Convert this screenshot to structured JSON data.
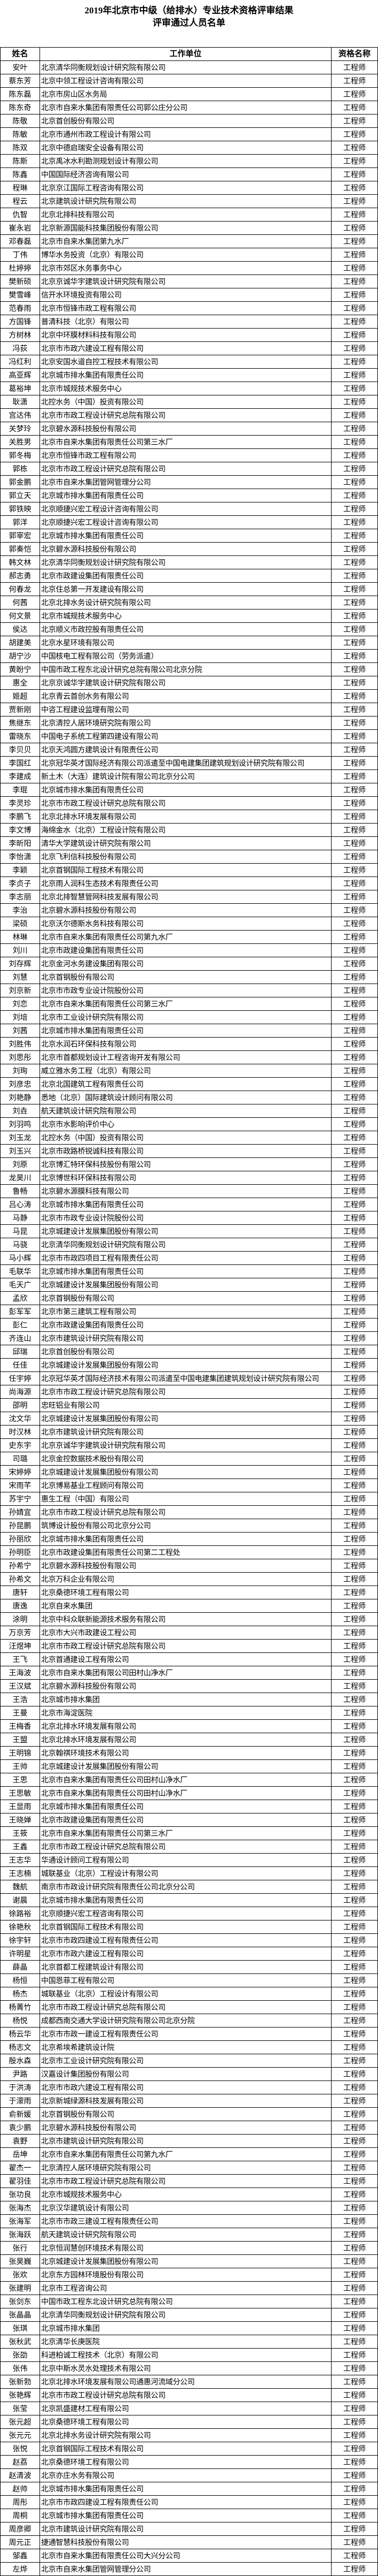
{
  "title": {
    "line1": "2019年北京市中级（给排水）专业技术资格评审结果",
    "line2": "评审通过人员名单"
  },
  "table": {
    "headers": [
      "姓名",
      "工作单位",
      "资格名称"
    ],
    "rows": [
      [
        "安叶",
        "北京清华同衡规划设计研究院有限公司",
        "工程师"
      ],
      [
        "蔡东芳",
        "北京中领工程设计咨询有限公司",
        "工程师"
      ],
      [
        "陈东磊",
        "北京市房山区水务局",
        "工程师"
      ],
      [
        "陈东奇",
        "北京市自来水集团有限责任公司郭公庄分公司",
        "工程师"
      ],
      [
        "陈敬",
        "北京首创股份有限公司",
        "工程师"
      ],
      [
        "陈敏",
        "北京市通州市政工程设计有限公司",
        "工程师"
      ],
      [
        "陈双",
        "北京中德启瑞安全设备有限公司",
        "工程师"
      ],
      [
        "陈斯",
        "北京禹冰水利勘测规划设计有限公司",
        "工程师"
      ],
      [
        "陈鑫",
        "中国国际经济咨询有限公司",
        "工程师"
      ],
      [
        "程琳",
        "北京京江国际工程咨询有限公司",
        "工程师"
      ],
      [
        "程云",
        "北京建筑设计研究院有限公司",
        "工程师"
      ],
      [
        "仇智",
        "北京北排科技有限公司",
        "工程师"
      ],
      [
        "崔永岩",
        "北京新源国能科技集团股份有限公司",
        "工程师"
      ],
      [
        "邓春磊",
        "北京市自来水集团第九水厂",
        "工程师"
      ],
      [
        "丁伟",
        "博华水务投资（北京）有限公司",
        "工程师"
      ],
      [
        "杜婷婷",
        "北京市郊区水务事务中心",
        "工程师"
      ],
      [
        "樊新硕",
        "北京京诚华宇建筑设计研究院有限公司",
        "工程师"
      ],
      [
        "樊雪峰",
        "信开水环境投资有限公司",
        "工程师"
      ],
      [
        "范春雨",
        "北京市恒锋市政工程有限公司",
        "工程师"
      ],
      [
        "方国锋",
        "普清科技（北京）有限公司",
        "工程师"
      ],
      [
        "方树林",
        "北京中环膜材料科技有限公司",
        "工程师"
      ],
      [
        "冯荻",
        "北京市市政六建设工程有限公司",
        "工程师"
      ],
      [
        "冯红利",
        "北京安国水道自控工程技术有限公司",
        "工程师"
      ],
      [
        "高亚辉",
        "北京城市排水集团有限责任公司",
        "工程师"
      ],
      [
        "葛裕坤",
        "北京市城规技术服务中心",
        "工程师"
      ],
      [
        "耿潇",
        "北控水务（中国）投资有限公司",
        "工程师"
      ],
      [
        "宫达伟",
        "北京市市政工程设计研究总院有限公司",
        "工程师"
      ],
      [
        "关梦玲",
        "北京碧水源科技股份有限公司",
        "工程师"
      ],
      [
        "关胜男",
        "北京市自来水集团有限责任公司第三水厂",
        "工程师"
      ],
      [
        "郭冬梅",
        "北京市恒锋市政工程有限公司",
        "工程师"
      ],
      [
        "郭栋",
        "北京市市政工程设计研究总院有限公司",
        "工程师"
      ],
      [
        "郭金鹏",
        "北京市自来水集团管网管理分公司",
        "工程师"
      ],
      [
        "郭立天",
        "北京城市排水集团有限责任公司",
        "工程师"
      ],
      [
        "郭铁映",
        "北京顺捷兴宏工程设计咨询有限公司",
        "工程师"
      ],
      [
        "郭洋",
        "北京顺捷兴宏工程设计咨询有限公司",
        "工程师"
      ],
      [
        "郭宰宏",
        "北京城市排水集团有限责任公司",
        "工程师"
      ],
      [
        "郭奏恺",
        "北京碧水源科技股份有限公司",
        "工程师"
      ],
      [
        "韩文林",
        "北京清华同衡规划设计研究院有限公司",
        "工程师"
      ],
      [
        "郝志勇",
        "北京市政建设集团有限责任公司",
        "工程师"
      ],
      [
        "何春龙",
        "北京住总第一开发建设有限公司",
        "工程师"
      ],
      [
        "何茜",
        "北京北排水务设计研究院有限公司",
        "工程师"
      ],
      [
        "何文景",
        "北京市城规技术服务中心",
        "工程师"
      ],
      [
        "侯达",
        "北京顺义市政控股有限责任公司",
        "工程师"
      ],
      [
        "胡建美",
        "北京水星环境有限公司",
        "工程师"
      ],
      [
        "胡宁沙",
        "中国核电工程有限公司（劳务派遣）",
        "工程师"
      ],
      [
        "黄盼宁",
        "中国市政工程东北设计研究总院有限公司北京分院",
        "工程师"
      ],
      [
        "惠全",
        "北京京诚华宇建筑设计研究院有限公司",
        "工程师"
      ],
      [
        "姬超",
        "北京青云首创水务有限公司",
        "工程师"
      ],
      [
        "贾新刚",
        "中咨工程建设监理有限公司",
        "工程师"
      ],
      [
        "焦继东",
        "北京清控人居环境研究院有限公司",
        "工程师"
      ],
      [
        "雷晓东",
        "中国电子系统工程第四建设有限公司",
        "工程师"
      ],
      [
        "李贝贝",
        "北京天鸿圆方建筑设计有限责任公司",
        "工程师"
      ],
      [
        "李国红",
        "北京冠华英才国际经济有限公司派遣至中国电建集团建筑规划设计研究院有限公司",
        "工程师"
      ],
      [
        "李建成",
        "新土木（大连）建筑设计院有限公司北京分公司",
        "工程师"
      ],
      [
        "李琨",
        "北京城市排水集团有限责任公司",
        "工程师"
      ],
      [
        "李灵珍",
        "北京市市政工程设计研究总院有限公司",
        "工程师"
      ],
      [
        "李鹏飞",
        "北京北排水环境发展有限公司",
        "工程师"
      ],
      [
        "李文博",
        "海绵金水（北京）工程设计院有限公司",
        "工程师"
      ],
      [
        "李昕阳",
        "清华大学建筑设计研究院有限公司",
        "工程师"
      ],
      [
        "李怡潇",
        "北京飞利信科技股份有限公司",
        "工程师"
      ],
      [
        "李颖",
        "北京首钢国际工程技术有限公司",
        "工程师"
      ],
      [
        "李贞子",
        "北京雨人润科生态技术有限责任公司",
        "工程师"
      ],
      [
        "李志丽",
        "北京北排智慧管网科技发展有限公司",
        "工程师"
      ],
      [
        "李治",
        "北京碧水源科技股份有限公司",
        "工程师"
      ],
      [
        "梁硕",
        "北京沃尔德斯水务科技有限公司",
        "工程师"
      ],
      [
        "林琳",
        "北京市自来水集团有限责任公司第九水厂",
        "工程师"
      ],
      [
        "刘川",
        "北京市政建设集团有限责任公司",
        "工程师"
      ],
      [
        "刘存辉",
        "北京金河水务建设集团有限公司",
        "工程师"
      ],
      [
        "刘慧",
        "北京首钢股份有限公司",
        "工程师"
      ],
      [
        "刘京新",
        "北京市市政专业设计院股份公司",
        "工程师"
      ],
      [
        "刘恋",
        "北京市自来水集团有限责任公司第三水厂",
        "工程师"
      ],
      [
        "刘培",
        "北京市工业设计研究院有限公司",
        "工程师"
      ],
      [
        "刘茜",
        "北京城市排水集团有限责任公司",
        "工程师"
      ],
      [
        "刘胜伟",
        "北京水润石环保科技有限公司",
        "工程师"
      ],
      [
        "刘思彤",
        "北京市首都规划设计工程咨询开发有限公司",
        "工程师"
      ],
      [
        "刘珣",
        "威立雅水务工程（北京）有限公司",
        "工程师"
      ],
      [
        "刘彦忠",
        "北京北国建筑工程有限责任公司",
        "工程师"
      ],
      [
        "刘艳静",
        "悉地（北京）国际建筑设计顾问有限公司",
        "工程师"
      ],
      [
        "刘垚",
        "航天建筑设计研究院有限公司",
        "工程师"
      ],
      [
        "刘羽鸣",
        "北京市水影响评价中心",
        "工程师"
      ],
      [
        "刘玉龙",
        "北控水务（中国）投资有限公司",
        "工程师"
      ],
      [
        "刘玉兴",
        "北京市政路桥锐诚科技有限公司",
        "工程师"
      ],
      [
        "刘原",
        "北京博汇特环保科技股份有限公司",
        "工程师"
      ],
      [
        "龙昊川",
        "北京博世科环保科技有限公司",
        "工程师"
      ],
      [
        "鲁畅",
        "北京碧水源膜科技有限公司",
        "工程师"
      ],
      [
        "吕心涛",
        "北京城市排水集团有限责任公司",
        "工程师"
      ],
      [
        "马静",
        "北京市市政专业设计院股份公司",
        "工程师"
      ],
      [
        "马昆",
        "北京城建设计发展集团股份有限公司",
        "工程师"
      ],
      [
        "马骁",
        "北京清华同衡规划设计研究院有限公司",
        "工程师"
      ],
      [
        "马小辉",
        "北京市市政四项目工程有限责任公司",
        "工程师"
      ],
      [
        "毛联华",
        "北京城市排水集团有限责任公司",
        "工程师"
      ],
      [
        "毛天广",
        "北京城建设计发展集团股份有限公司",
        "工程师"
      ],
      [
        "孟欣",
        "北京首钢股份有限公司",
        "工程师"
      ],
      [
        "彭军军",
        "北京市第三建筑工程有限公司",
        "工程师"
      ],
      [
        "彭仁",
        "北京市政建设集团有限责任公司",
        "工程师"
      ],
      [
        "齐连山",
        "北京市建筑设计研究院有限公司",
        "工程师"
      ],
      [
        "邱瑞",
        "北京首创股份有限公司",
        "工程师"
      ],
      [
        "任佳",
        "北京城建设计发展集团股份有限公司",
        "工程师"
      ],
      [
        "任宇婷",
        "北京冠华英才国际经济技术有限公司派遣至中国电建集团建筑规划设计研究院有限公司",
        "工程师"
      ],
      [
        "尚海源",
        "北京市市政工程设计研究总院有限公司",
        "工程师"
      ],
      [
        "邵明",
        "忠旺铝业有限公司",
        "工程师"
      ],
      [
        "沈文华",
        "北京城建设计发展集团股份有限公司",
        "工程师"
      ],
      [
        "时汉林",
        "北京市建筑设计研究院有限公司",
        "工程师"
      ],
      [
        "史东宇",
        "北京京诚华宇建筑设计研究院有限公司",
        "工程师"
      ],
      [
        "司璐",
        "北京金控数据技术股份有限公司",
        "工程师"
      ],
      [
        "宋婷婷",
        "北京城建设计发展集团股份有限公司",
        "工程师"
      ],
      [
        "宋雨芊",
        "北京博易基业工程顾问有限公司",
        "工程师"
      ],
      [
        "苏宇宁",
        "惠生工程（中国）有限公司",
        "工程师"
      ],
      [
        "孙婧宜",
        "北京市市政工程设计研究总院有限公司",
        "工程师"
      ],
      [
        "孙昆鹏",
        "筑博设计股份有限公司北京分公司",
        "工程师"
      ],
      [
        "孙丽欣",
        "北京城市排水集团有限责任公司",
        "工程师"
      ],
      [
        "孙明臣",
        "北京市政建设集团有限责任公司第二工程处",
        "工程师"
      ],
      [
        "孙希宁",
        "北京碧水源科技股份有限公司",
        "工程师"
      ],
      [
        "孙希文",
        "北京万科企业有限公司",
        "工程师"
      ],
      [
        "唐轩",
        "北京桑德环境工程有限公司",
        "工程师"
      ],
      [
        "唐逸",
        "北京自来水集团",
        "工程师"
      ],
      [
        "涂明",
        "北京中科众联新能源技术服务有限公司",
        "工程师"
      ],
      [
        "万京芳",
        "北京市大兴市政建设工程公司",
        "工程师"
      ],
      [
        "汪煜坤",
        "北京市市政工程设计研究总院有限公司",
        "工程师"
      ],
      [
        "王飞",
        "北京首通建设工程有限公司",
        "工程师"
      ],
      [
        "王海波",
        "北京市自来水集团有限公司田村山净水厂",
        "工程师"
      ],
      [
        "王汉斌",
        "北京碧水源科技股份有限公司",
        "工程师"
      ],
      [
        "王浩",
        "北京城市排水集团",
        "工程师"
      ],
      [
        "王曼",
        "北京市海淀医院",
        "工程师"
      ],
      [
        "王梅香",
        "北京北排水环境发展有限公司",
        "工程师"
      ],
      [
        "王盟",
        "北京北排水环境发展有限公司",
        "工程师"
      ],
      [
        "王明锦",
        "北京翰祺环境技术有限公司",
        "工程师"
      ],
      [
        "王帅",
        "北京城建设计发展集团股份有限公司",
        "工程师"
      ],
      [
        "王思",
        "北京市自来水集团有限责任公司田村山净水厂",
        "工程师"
      ],
      [
        "王思敏",
        "北京市自来水集团有限责任公司田村山净水厂",
        "工程师"
      ],
      [
        "王显雨",
        "北京城市排水集团有限责任公司",
        "工程师"
      ],
      [
        "王晓婵",
        "北京市政建设集团有限责任公司",
        "工程师"
      ],
      [
        "王筱",
        "北京市自来水集团有限责任公司第三水厂",
        "工程师"
      ],
      [
        "王鑫",
        "北京市市政工程设计研究总院有限公司",
        "工程师"
      ],
      [
        "王志华",
        "华通设计顾问工程有限公司",
        "工程师"
      ],
      [
        "王志楠",
        "城联基业（北京）工程设计有限公司",
        "工程师"
      ],
      [
        "魏航",
        "南京市市政设计研究院有限责任公司北京分公司",
        "工程师"
      ],
      [
        "谢晨",
        "北京城市排水集团有限责任公司",
        "工程师"
      ],
      [
        "徐路裕",
        "北京顺捷兴宏工程咨询有限公司",
        "工程师"
      ],
      [
        "徐艳秋",
        "北京首钢国际工程技术有限公司",
        "工程师"
      ],
      [
        "徐宇轩",
        "北京市市政四建设工程有限责任公司",
        "工程师"
      ],
      [
        "许明星",
        "北京市市政六建设工程有限公司",
        "工程师"
      ],
      [
        "薛晶",
        "北京首都工程建筑设计有限公司",
        "工程师"
      ],
      [
        "杨恒",
        "中国恩菲工程有限公司",
        "工程师"
      ],
      [
        "杨杰",
        "城联基业（北京）工程设计有限公司",
        "工程师"
      ],
      [
        "杨菁竹",
        "北京市市政工程设计研究总院有限公司",
        "工程师"
      ],
      [
        "杨悦",
        "成都西南交通大学设计研究院有限公司北京分院",
        "工程师"
      ],
      [
        "杨云华",
        "北京市市政一建设工程有限责任公司",
        "工程师"
      ],
      [
        "杨志文",
        "北京希埃希建筑设计院",
        "工程师"
      ],
      [
        "殷水森",
        "北京市工业设计研究院有限公司",
        "工程师"
      ],
      [
        "尹路",
        "汉嘉设计集团股份有限公司",
        "工程师"
      ],
      [
        "于洪涛",
        "北京市市政六建设工程有限公司",
        "工程师"
      ],
      [
        "于濛雨",
        "北京新城绿源科技发展有限公司",
        "工程师"
      ],
      [
        "俞新媛",
        "北京首钢股份有限公司",
        "工程师"
      ],
      [
        "袁少鹏",
        "北京碧水源科技股份有限公司",
        "工程师"
      ],
      [
        "袁野",
        "北京市建筑设计研究院有限公司",
        "工程师"
      ],
      [
        "岳坤",
        "北京市自来水集团有限责任公司第九水厂",
        "工程师"
      ],
      [
        "翟杰一",
        "北京清控人居环境研究院有限公司",
        "工程师"
      ],
      [
        "翟羽佳",
        "北京市市政工程设计研究总院有限公司",
        "工程师"
      ],
      [
        "张功良",
        "北京市城规技术服务中心",
        "工程师"
      ],
      [
        "张海杰",
        "北京汉华建筑设计有限公司",
        "工程师"
      ],
      [
        "张海军",
        "北京市市政三建设工程有限责任公司",
        "工程师"
      ],
      [
        "张海跃",
        "航天建筑设计研究院有限公司",
        "工程师"
      ],
      [
        "张行",
        "北京恒润慧创环境技术有限公司",
        "工程师"
      ],
      [
        "张昊巍",
        "北京城建设计发展集团股份有限公司",
        "工程师"
      ],
      [
        "张欢",
        "北京东方园林环境股份有限公司",
        "工程师"
      ],
      [
        "张建明",
        "北京市工程咨询公司",
        "工程师"
      ],
      [
        "张剑东",
        "中国市政工程东北设计研究总院有限公司",
        "工程师"
      ],
      [
        "张晶晶",
        "北京清华同衡规划设计研究院有限公司",
        "工程师"
      ],
      [
        "张琪",
        "北京城市排水集团",
        "工程师"
      ],
      [
        "张秋武",
        "北京清华长庚医院",
        "工程师"
      ],
      [
        "张劭",
        "科进柏诚工程技术（北京）有限公司",
        "工程师"
      ],
      [
        "张伟",
        "北京中斯水灵水处理技术有限公司",
        "工程师"
      ],
      [
        "张新勃",
        "北京北排水环境发展有限公司通惠河流域分公司",
        "工程师"
      ],
      [
        "张艳辉",
        "北京市市政工程设计研究总院有限公司",
        "工程师"
      ],
      [
        "张莹",
        "北京凯盛建材工程有限公司",
        "工程师"
      ],
      [
        "张元超",
        "北京桑德环境工程有限公司",
        "工程师"
      ],
      [
        "张元元",
        "北京北排水务设计研究院有限公司",
        "工程师"
      ],
      [
        "张悦",
        "北京首钢国际工程技术有限公司",
        "工程师"
      ],
      [
        "赵荔",
        "北京桑德环境工程有限公司",
        "工程师"
      ],
      [
        "赵清波",
        "北京亦庄水务有限公司",
        "工程师"
      ],
      [
        "赵帅",
        "北京城市排水集团有限责任公司",
        "工程师"
      ],
      [
        "周彤",
        "北京市市政四建设工程有限责任公司",
        "工程师"
      ],
      [
        "周桐",
        "北京城市排水集团有限责任公司",
        "工程师"
      ],
      [
        "周彦卿",
        "北京市建筑设计研究院有限公司",
        "工程师"
      ],
      [
        "周元正",
        "捷通智慧科技股份有限公司",
        "工程师"
      ],
      [
        "邹鑫",
        "北京市自来水集团有限责任公司大兴分公司",
        "工程师"
      ],
      [
        "左烨",
        "北京市自来水集团管网管理分公司",
        "工程师"
      ]
    ]
  }
}
